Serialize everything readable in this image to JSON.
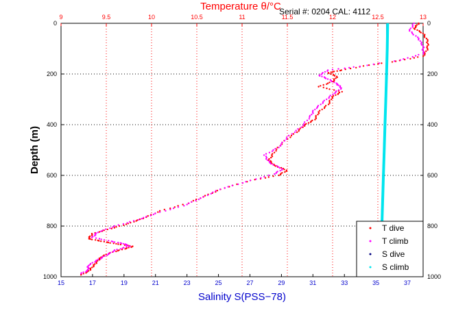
{
  "header": {
    "serial_text": "Serial #: 0204  CAL: 4112"
  },
  "chart_data": {
    "type": "scatter",
    "top_axis": {
      "label": "Temperature θ/°C",
      "range": [
        9,
        13
      ],
      "ticks": [
        "9",
        "9.5",
        "10",
        "10.5",
        "11",
        "11.5",
        "12",
        "12.5",
        "13"
      ],
      "color": "#ff0000"
    },
    "bottom_axis": {
      "label": "Salinity S(PSS−78)",
      "range": [
        15,
        38
      ],
      "ticks": [
        "15",
        "17",
        "19",
        "21",
        "23",
        "25",
        "27",
        "29",
        "31",
        "33",
        "35",
        "37"
      ],
      "color": "#0000cc"
    },
    "y_axis": {
      "label": "Depth (m)",
      "range": [
        0,
        1000
      ],
      "reversed": true,
      "ticks": [
        "0",
        "200",
        "400",
        "600",
        "800",
        "1000"
      ]
    },
    "grid": true,
    "legend_position": "bottom-right",
    "series": [
      {
        "name": "T dive",
        "axis": "temperature",
        "color": "#ff0000",
        "points": [
          [
            12.95,
            0
          ],
          [
            12.9,
            20
          ],
          [
            13.0,
            40
          ],
          [
            13.05,
            70
          ],
          [
            13.05,
            100
          ],
          [
            13.0,
            130
          ],
          [
            12.7,
            150
          ],
          [
            12.4,
            165
          ],
          [
            12.1,
            185
          ],
          [
            11.95,
            195
          ],
          [
            12.05,
            210
          ],
          [
            12.0,
            230
          ],
          [
            11.85,
            250
          ],
          [
            12.1,
            270
          ],
          [
            12.0,
            290
          ],
          [
            11.95,
            320
          ],
          [
            11.85,
            350
          ],
          [
            11.8,
            380
          ],
          [
            11.7,
            400
          ],
          [
            11.6,
            430
          ],
          [
            11.45,
            470
          ],
          [
            11.35,
            510
          ],
          [
            11.3,
            540
          ],
          [
            11.35,
            560
          ],
          [
            11.5,
            580
          ],
          [
            11.4,
            600
          ],
          [
            11.1,
            620
          ],
          [
            10.8,
            650
          ],
          [
            10.6,
            680
          ],
          [
            10.4,
            710
          ],
          [
            10.1,
            740
          ],
          [
            9.9,
            770
          ],
          [
            9.75,
            790
          ],
          [
            9.55,
            810
          ],
          [
            9.35,
            830
          ],
          [
            9.3,
            850
          ],
          [
            9.45,
            860
          ],
          [
            9.6,
            870
          ],
          [
            9.8,
            880
          ],
          [
            9.7,
            890
          ],
          [
            9.55,
            905
          ],
          [
            9.45,
            920
          ],
          [
            9.4,
            940
          ],
          [
            9.35,
            960
          ],
          [
            9.3,
            980
          ],
          [
            9.2,
            995
          ]
        ]
      },
      {
        "name": "T climb",
        "axis": "temperature",
        "color": "#ff00ff",
        "points": [
          [
            12.9,
            0
          ],
          [
            12.85,
            30
          ],
          [
            12.95,
            60
          ],
          [
            13.0,
            90
          ],
          [
            13.0,
            120
          ],
          [
            12.75,
            145
          ],
          [
            12.3,
            170
          ],
          [
            11.95,
            185
          ],
          [
            11.85,
            205
          ],
          [
            11.95,
            220
          ],
          [
            12.05,
            240
          ],
          [
            12.1,
            255
          ],
          [
            12.0,
            280
          ],
          [
            11.9,
            310
          ],
          [
            11.8,
            340
          ],
          [
            11.75,
            370
          ],
          [
            11.65,
            410
          ],
          [
            11.5,
            450
          ],
          [
            11.4,
            490
          ],
          [
            11.25,
            520
          ],
          [
            11.3,
            550
          ],
          [
            11.45,
            575
          ],
          [
            11.35,
            595
          ],
          [
            11.05,
            625
          ],
          [
            10.75,
            655
          ],
          [
            10.55,
            690
          ],
          [
            10.35,
            720
          ],
          [
            10.05,
            750
          ],
          [
            9.85,
            775
          ],
          [
            9.6,
            800
          ],
          [
            9.4,
            825
          ],
          [
            9.35,
            845
          ],
          [
            9.55,
            860
          ],
          [
            9.7,
            870
          ],
          [
            9.75,
            880
          ],
          [
            9.6,
            895
          ],
          [
            9.5,
            915
          ],
          [
            9.4,
            935
          ],
          [
            9.3,
            955
          ],
          [
            9.3,
            975
          ],
          [
            9.2,
            990
          ]
        ]
      },
      {
        "name": "S dive",
        "axis": "salinity",
        "color": "#000080",
        "points": [
          [
            35.7,
            0
          ],
          [
            35.7,
            100
          ],
          [
            35.65,
            200
          ],
          [
            35.6,
            300
          ],
          [
            35.55,
            400
          ],
          [
            35.5,
            500
          ],
          [
            35.45,
            600
          ],
          [
            35.4,
            700
          ],
          [
            35.35,
            800
          ],
          [
            35.3,
            900
          ],
          [
            35.25,
            1000
          ]
        ]
      },
      {
        "name": "S climb",
        "axis": "salinity",
        "color": "#00e5ee",
        "points": [
          [
            35.75,
            0
          ],
          [
            35.72,
            100
          ],
          [
            35.68,
            200
          ],
          [
            35.63,
            300
          ],
          [
            35.58,
            400
          ],
          [
            35.53,
            500
          ],
          [
            35.48,
            600
          ],
          [
            35.43,
            700
          ],
          [
            35.38,
            800
          ],
          [
            35.33,
            900
          ],
          [
            35.28,
            1000
          ]
        ]
      }
    ]
  }
}
